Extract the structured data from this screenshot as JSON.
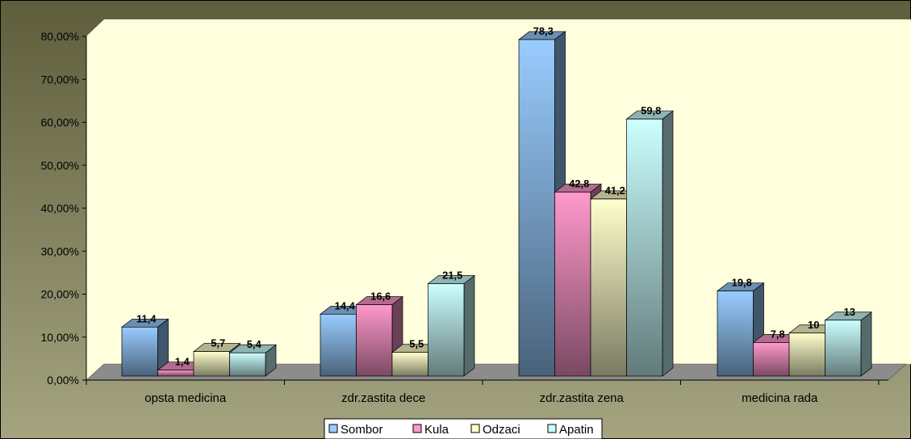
{
  "chart_data": {
    "type": "bar",
    "title": "",
    "xlabel": "",
    "ylabel": "",
    "categories": [
      "opsta medicina",
      "zdr.zastita dece",
      "zdr.zastita zena",
      "medicina rada"
    ],
    "series": [
      {
        "name": "Sombor",
        "values": [
          11.4,
          14.4,
          78.3,
          19.8
        ],
        "labels": [
          "11,4",
          "14,4",
          "78,3",
          "19,8"
        ],
        "color": "#99ccff"
      },
      {
        "name": "Kula",
        "values": [
          1.4,
          16.6,
          42.8,
          7.8
        ],
        "labels": [
          "1,4",
          "16,6",
          "42,8",
          "7,8"
        ],
        "color": "#ff99cc"
      },
      {
        "name": "Odzaci",
        "values": [
          5.7,
          5.5,
          41.2,
          10
        ],
        "labels": [
          "5,7",
          "5,5",
          "41,2",
          "10"
        ],
        "color": "#ffffcc"
      },
      {
        "name": "Apatin",
        "values": [
          5.4,
          21.5,
          59.8,
          13
        ],
        "labels": [
          "5,4",
          "21,5",
          "59,8",
          "13"
        ],
        "color": "#ccffff"
      }
    ],
    "ylim": [
      0,
      80
    ],
    "yticks": [
      "0,00%",
      "10,00%",
      "20,00%",
      "30,00%",
      "40,00%",
      "50,00%",
      "60,00%",
      "70,00%",
      "80,00%"
    ],
    "legend_position": "bottom",
    "grid": false,
    "colors": {
      "wall": "#ffffdd",
      "background": "#7a7a54",
      "floor": "#8c8c8c"
    }
  }
}
